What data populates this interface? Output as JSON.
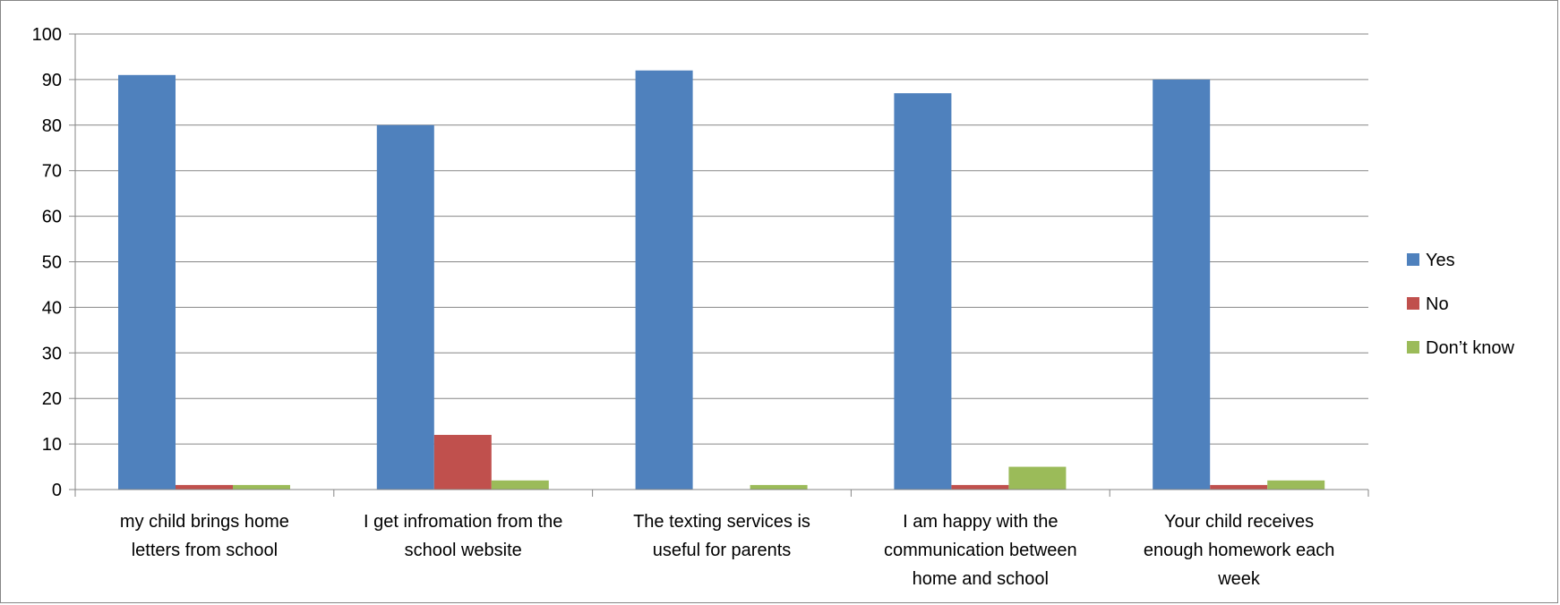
{
  "chart_data": {
    "type": "bar",
    "title": "",
    "xlabel": "",
    "ylabel": "",
    "ylim": [
      0,
      100
    ],
    "y_ticks": [
      "0",
      "10",
      "20",
      "30",
      "40",
      "50",
      "60",
      "70",
      "80",
      "90",
      "100"
    ],
    "grid": true,
    "legend_position": "right",
    "categories": [
      [
        "my child brings home",
        "letters from school"
      ],
      [
        "I get infromation from the",
        "school website"
      ],
      [
        "The texting services is",
        "useful for parents"
      ],
      [
        "I am happy with the",
        "communication between",
        "home and school"
      ],
      [
        "Your child receives",
        "enough homework each",
        "week"
      ]
    ],
    "series": [
      {
        "name": "Yes",
        "color": "#4f81bd",
        "values": [
          91,
          80,
          92,
          87,
          90
        ]
      },
      {
        "name": "No",
        "color": "#c0504d",
        "values": [
          1,
          12,
          0,
          1,
          1
        ]
      },
      {
        "name": "Don’t know",
        "color": "#9bbb59",
        "values": [
          1,
          2,
          1,
          5,
          2
        ]
      }
    ]
  }
}
